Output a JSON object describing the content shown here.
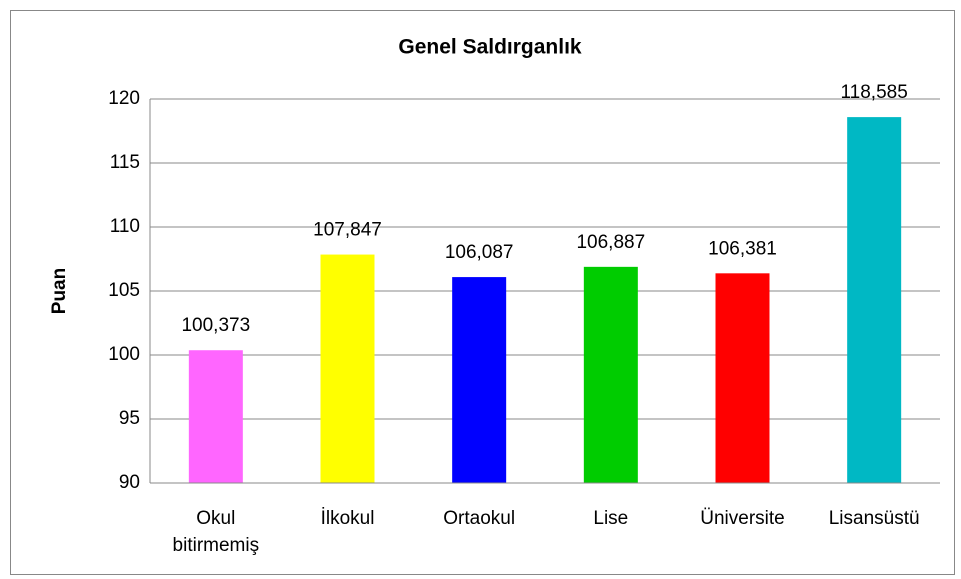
{
  "chart_data": {
    "type": "bar",
    "title": "Genel Saldırganlık",
    "ylabel": "Puan",
    "categories": [
      "Okul bitirmemiş",
      "İlkokul",
      "Ortaokul",
      "Lise",
      "Üniversite",
      "Lisansüstü"
    ],
    "values": [
      100.373,
      107.847,
      106.087,
      106.887,
      106.381,
      118.585
    ],
    "value_labels": [
      "100,373",
      "107,847",
      "106,087",
      "106,887",
      "106,381",
      "118,585"
    ],
    "colors": [
      "#ff66ff",
      "#ffff00",
      "#0000ff",
      "#00cc00",
      "#ff0000",
      "#00b8c4"
    ],
    "ylim": [
      90,
      120
    ],
    "yticks": [
      90,
      95,
      100,
      105,
      110,
      115,
      120
    ],
    "grid": true
  }
}
